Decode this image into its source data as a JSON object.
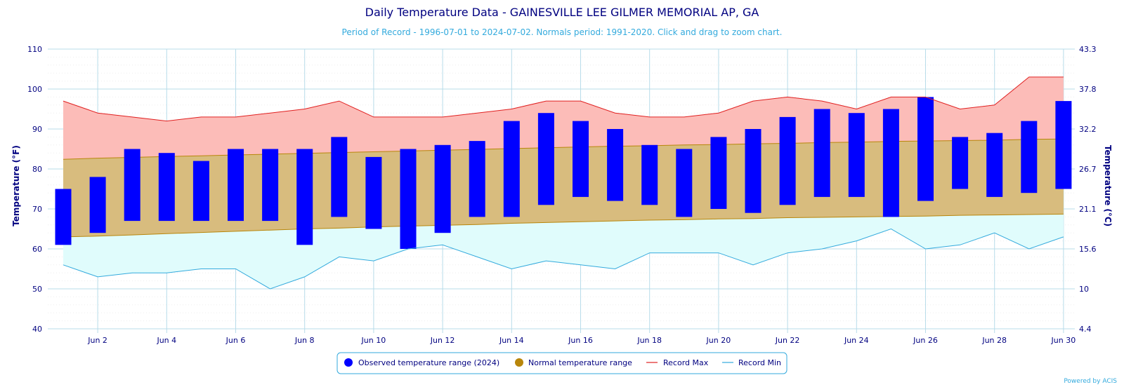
{
  "chart_data": {
    "type": "bar",
    "title": "Daily Temperature Data - GAINESVILLE LEE GILMER MEMORIAL AP, GA",
    "subtitle": "Period of Record - 1996-07-01 to 2024-07-02. Normals period: 1991-2020. Click and drag to zoom chart.",
    "ylabel": "Temperature (°F)",
    "ylabel_right": "Temperature (°C)",
    "ylim": [
      40,
      110
    ],
    "xlim": [
      1,
      30
    ],
    "y_ticks": [
      40,
      50,
      60,
      70,
      80,
      90,
      100,
      110
    ],
    "y_ticks_right": [
      "4.4",
      "10",
      "15.6",
      "21.1",
      "26.7",
      "32.2",
      "37.8",
      "43.3"
    ],
    "x_ticks": [
      {
        "day": 2,
        "label": "Jun 2"
      },
      {
        "day": 4,
        "label": "Jun 4"
      },
      {
        "day": 6,
        "label": "Jun 6"
      },
      {
        "day": 8,
        "label": "Jun 8"
      },
      {
        "day": 10,
        "label": "Jun 10"
      },
      {
        "day": 12,
        "label": "Jun 12"
      },
      {
        "day": 14,
        "label": "Jun 14"
      },
      {
        "day": 16,
        "label": "Jun 16"
      },
      {
        "day": 18,
        "label": "Jun 18"
      },
      {
        "day": 20,
        "label": "Jun 20"
      },
      {
        "day": 22,
        "label": "Jun 22"
      },
      {
        "day": 24,
        "label": "Jun 24"
      },
      {
        "day": 26,
        "label": "Jun 26"
      },
      {
        "day": 28,
        "label": "Jun 28"
      },
      {
        "day": 30,
        "label": "Jun 30"
      }
    ],
    "days": [
      1,
      2,
      3,
      4,
      5,
      6,
      7,
      8,
      9,
      10,
      11,
      12,
      13,
      14,
      15,
      16,
      17,
      18,
      19,
      20,
      21,
      22,
      23,
      24,
      25,
      26,
      27,
      28,
      29,
      30
    ],
    "series": [
      {
        "name": "Observed temperature range (2024)",
        "color": "#0000ff",
        "low": [
          61,
          64,
          67,
          67,
          67,
          67,
          67,
          61,
          68,
          65,
          60,
          64,
          68,
          68,
          71,
          73,
          72,
          71,
          68,
          70,
          69,
          71,
          73,
          73,
          68,
          72,
          75,
          73,
          74,
          75
        ],
        "high": [
          75,
          78,
          85,
          84,
          82,
          85,
          85,
          85,
          88,
          83,
          85,
          86,
          87,
          92,
          94,
          92,
          90,
          86,
          85,
          88,
          90,
          93,
          95,
          94,
          95,
          98,
          88,
          89,
          92,
          97
        ]
      },
      {
        "name": "Normal temperature range",
        "color": "#b8860b",
        "fill": "#d8bc7e",
        "low": [
          63,
          63.2,
          63.5,
          63.8,
          64.1,
          64.4,
          64.7,
          65,
          65.2,
          65.5,
          65.7,
          65.9,
          66.1,
          66.4,
          66.6,
          66.8,
          67,
          67.2,
          67.3,
          67.5,
          67.6,
          67.8,
          67.9,
          68,
          68.1,
          68.2,
          68.4,
          68.5,
          68.6,
          68.7
        ],
        "high": [
          82.4,
          82.7,
          82.9,
          83.1,
          83.3,
          83.5,
          83.7,
          83.9,
          84.1,
          84.3,
          84.5,
          84.7,
          84.9,
          85.1,
          85.3,
          85.5,
          85.7,
          85.8,
          86,
          86.1,
          86.3,
          86.4,
          86.6,
          86.7,
          86.9,
          87,
          87.1,
          87.2,
          87.4,
          87.5
        ]
      },
      {
        "name": "Record Max",
        "color": "#e02020",
        "fill": "#fcbcb8",
        "values": [
          97,
          94,
          93,
          92,
          93,
          93,
          94,
          95,
          97,
          93,
          93,
          93,
          94,
          95,
          97,
          97,
          94,
          93,
          93,
          94,
          97,
          98,
          97,
          95,
          98,
          98,
          95,
          96,
          103,
          103
        ]
      },
      {
        "name": "Record Min",
        "color": "#33aadd",
        "fill": "#e0fcfc",
        "values": [
          56,
          53,
          54,
          54,
          55,
          55,
          50,
          53,
          58,
          57,
          60,
          61,
          58,
          55,
          57,
          56,
          55,
          59,
          59,
          59,
          56,
          59,
          60,
          62,
          65,
          60,
          61,
          64,
          60,
          63
        ]
      }
    ],
    "legend_position": "bottom-center",
    "grid": true
  },
  "legend": {
    "observed": "Observed temperature range (2024)",
    "normal": "Normal temperature range",
    "record_max": "Record Max",
    "record_min": "Record Min"
  },
  "credit": "Powered by ACIS"
}
